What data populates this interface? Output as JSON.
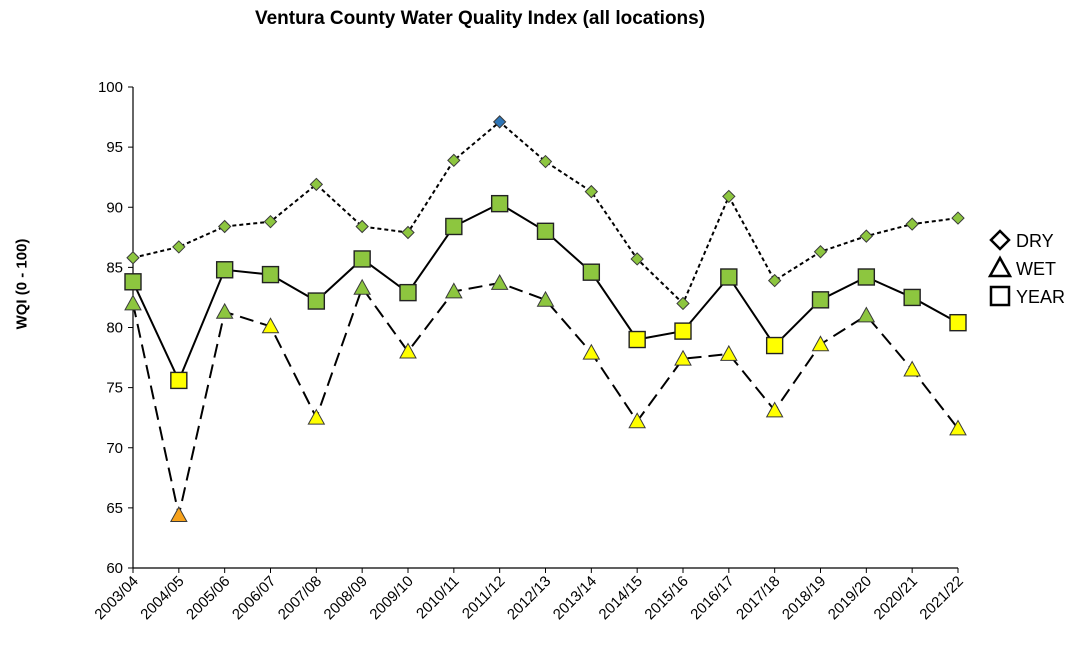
{
  "chart_data": {
    "type": "line",
    "title": "Ventura County Water Quality Index (all locations)",
    "xlabel": "",
    "ylabel": "WQI (0 - 100)",
    "ylim": [
      60,
      100
    ],
    "yticks": [
      60,
      65,
      70,
      75,
      80,
      85,
      90,
      95,
      100
    ],
    "grid": false,
    "legend_position": "right",
    "categories": [
      "2003/04",
      "2004/05",
      "2005/06",
      "2006/07",
      "2007/08",
      "2008/09",
      "2009/10",
      "2010/11",
      "2011/12",
      "2012/13",
      "2013/14",
      "2014/15",
      "2015/16",
      "2016/17",
      "2017/18",
      "2018/19",
      "2019/20",
      "2020/21",
      "2021/22"
    ],
    "series": [
      {
        "name": "DRY",
        "marker": "diamond",
        "line_style": "dotted",
        "values": [
          85.8,
          86.7,
          88.4,
          88.8,
          91.9,
          88.4,
          87.9,
          93.9,
          97.1,
          93.8,
          91.3,
          85.7,
          82.0,
          90.9,
          83.9,
          86.3,
          87.6,
          88.6,
          89.1
        ],
        "point_colors": [
          "#8DC63F",
          "#8DC63F",
          "#8DC63F",
          "#8DC63F",
          "#8DC63F",
          "#8DC63F",
          "#8DC63F",
          "#8DC63F",
          "#2E75B6",
          "#8DC63F",
          "#8DC63F",
          "#8DC63F",
          "#8DC63F",
          "#8DC63F",
          "#8DC63F",
          "#8DC63F",
          "#8DC63F",
          "#8DC63F",
          "#8DC63F"
        ]
      },
      {
        "name": "WET",
        "marker": "triangle",
        "line_style": "dashed",
        "values": [
          82.0,
          64.4,
          81.3,
          80.1,
          72.5,
          83.3,
          78.0,
          83.0,
          83.7,
          82.3,
          77.9,
          72.2,
          77.4,
          77.8,
          73.1,
          78.6,
          81.0,
          76.5,
          71.6
        ],
        "point_colors": [
          "#8DC63F",
          "#F7A21B",
          "#8DC63F",
          "#FFFF00",
          "#FFFF00",
          "#8DC63F",
          "#FFFF00",
          "#8DC63F",
          "#8DC63F",
          "#8DC63F",
          "#FFFF00",
          "#FFFF00",
          "#FFFF00",
          "#FFFF00",
          "#FFFF00",
          "#FFFF00",
          "#8DC63F",
          "#FFFF00",
          "#FFFF00"
        ]
      },
      {
        "name": "YEAR",
        "marker": "square",
        "line_style": "solid",
        "values": [
          83.8,
          75.6,
          84.8,
          84.4,
          82.2,
          85.7,
          82.9,
          88.4,
          90.3,
          88.0,
          84.6,
          79.0,
          79.7,
          84.2,
          78.5,
          82.3,
          84.2,
          82.5,
          80.4
        ],
        "point_colors": [
          "#8DC63F",
          "#FFFF00",
          "#8DC63F",
          "#8DC63F",
          "#8DC63F",
          "#8DC63F",
          "#8DC63F",
          "#8DC63F",
          "#8DC63F",
          "#8DC63F",
          "#8DC63F",
          "#FFFF00",
          "#FFFF00",
          "#8DC63F",
          "#FFFF00",
          "#8DC63F",
          "#8DC63F",
          "#8DC63F",
          "#FFFF00"
        ]
      }
    ],
    "legend": [
      {
        "label": "DRY",
        "symbol": "diamond"
      },
      {
        "label": "WET",
        "symbol": "triangle"
      },
      {
        "label": "YEAR",
        "symbol": "square"
      }
    ]
  }
}
